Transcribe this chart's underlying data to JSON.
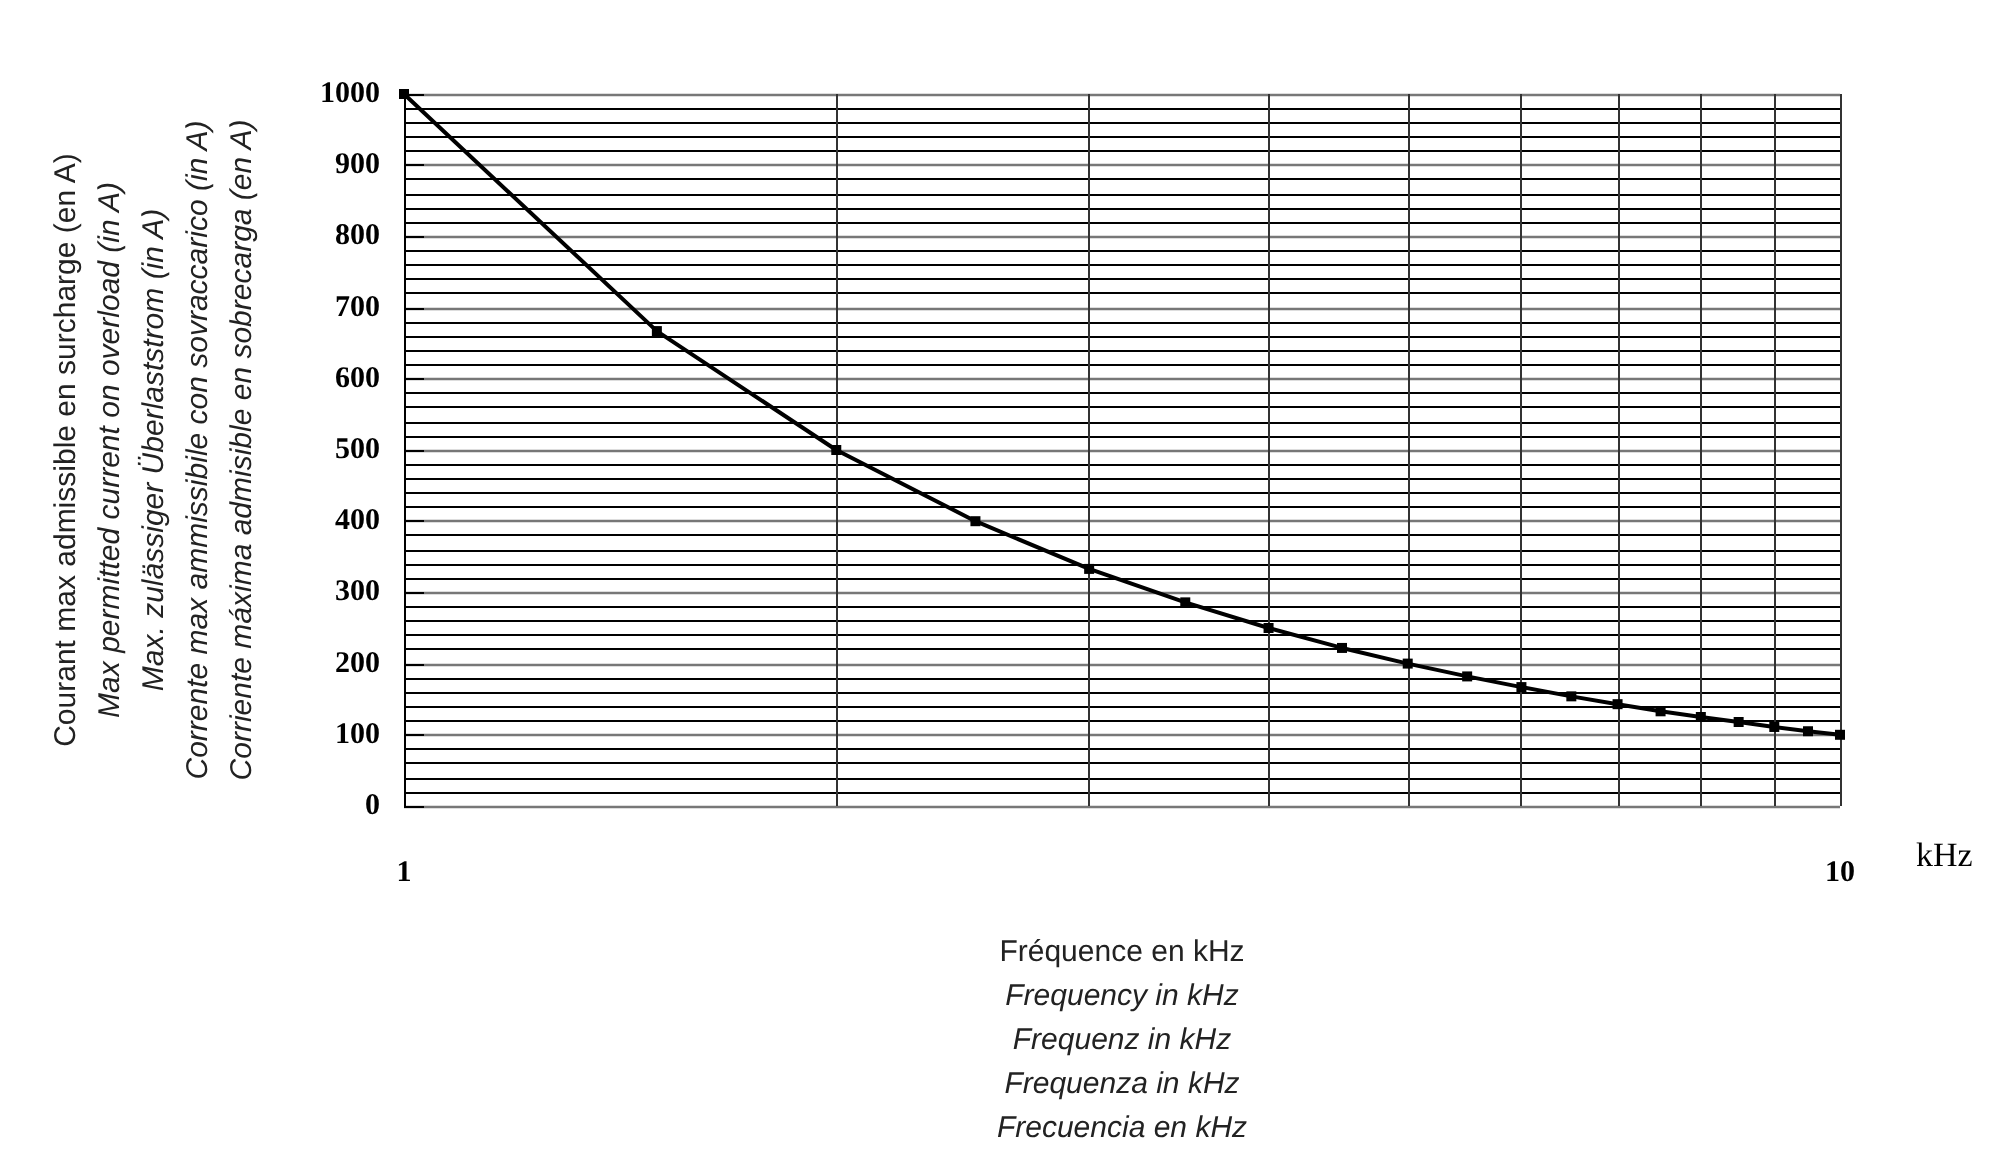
{
  "chart_data": {
    "type": "line",
    "xlabel": "Fréquence en kHz\nFrequency in kHz\nFrequenz in kHz\nFrequenza in kHz\nFrecuencia en kHz",
    "ylabel": "Courant max admissible en surcharge (en A)\nMax permitted current on overload (in A)\nMax. zulässiger Überlaststrom (in A)\nCorrente max ammissibile con sovraccarico (in A)\nCorriente máxima admisible en sobrecarga (en A)",
    "annotations": [
      "kHz"
    ],
    "series": [
      {
        "color": "#000000",
        "x": [
          1,
          1.5,
          2,
          2.5,
          3,
          3.5,
          4,
          4.5,
          5,
          5.5,
          6,
          6.5,
          7,
          7.5,
          8,
          8.5,
          9,
          9.5,
          10
        ],
        "values": [
          1000,
          667,
          500,
          400,
          333,
          286,
          250,
          222,
          200,
          182,
          167,
          154,
          143,
          133,
          125,
          118,
          111,
          105,
          100
        ]
      }
    ],
    "log": "x",
    "xlim": [
      1,
      10
    ],
    "xticks": [
      1,
      {
        "value": 2,
        "label": null
      },
      {
        "value": 3,
        "label": null
      },
      {
        "value": 4,
        "label": null
      },
      {
        "value": 5,
        "label": null
      },
      {
        "value": 6,
        "label": null
      },
      {
        "value": 7,
        "label": null
      },
      {
        "value": 8,
        "label": null
      },
      {
        "value": 9,
        "label": null
      },
      10
    ],
    "ylim": [
      0,
      1000
    ],
    "yticks": [
      0,
      100,
      200,
      300,
      400,
      500,
      600,
      700,
      800,
      900,
      1000
    ],
    "grid": true,
    "marker": "square",
    "line_style": "solid"
  }
}
